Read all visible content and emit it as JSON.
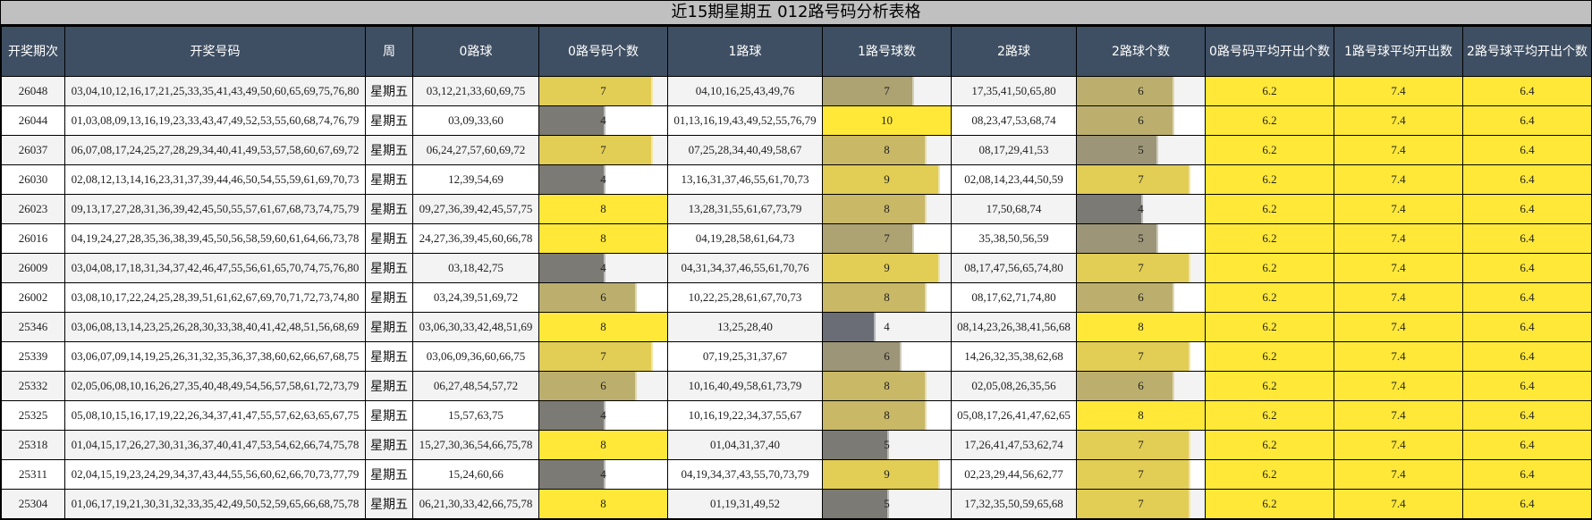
{
  "title": "近15期星期五 012路号码分析表格",
  "headers": [
    "开奖期次",
    "开奖号码",
    "周",
    "0路球",
    "0路号码个数",
    "1路球",
    "1路号球数",
    "2路球",
    "2路球个数",
    "0路号码平均开出个数",
    "1路号球平均开出数",
    "2路号球平均开出个数"
  ],
  "bar_max": {
    "zero": 8,
    "one": 10,
    "two": 8
  },
  "colors": {
    "header_bg": "#3f4f63",
    "title_bg": "#c0c0c0",
    "avg_bg": "#ffe838",
    "scale": {
      "max": "#ffe838",
      "high": "#e2cd55",
      "mid_high": "#c9b866",
      "mid": "#bcaf6e",
      "mid_low": "#aca272",
      "low": "#9c9577",
      "lower": "#7c7a74",
      "min": "#6a6d76"
    }
  },
  "rows": [
    {
      "period": "26048",
      "numbers": "03,04,10,12,16,17,21,25,33,35,41,43,49,50,60,65,69,75,76,80",
      "week": "星期五",
      "zero": "03,12,21,33,60,69,75",
      "zero_count": 7,
      "one": "04,10,16,25,43,49,76",
      "one_count": 7,
      "two": "17,35,41,50,65,80",
      "two_count": 6,
      "avg0": "6.2",
      "avg1": "7.4",
      "avg2": "6.4"
    },
    {
      "period": "26044",
      "numbers": "01,03,08,09,13,16,19,23,33,43,47,49,52,53,55,60,68,74,76,79",
      "week": "星期五",
      "zero": "03,09,33,60",
      "zero_count": 4,
      "one": "01,13,16,19,43,49,52,55,76,79",
      "one_count": 10,
      "two": "08,23,47,53,68,74",
      "two_count": 6,
      "avg0": "6.2",
      "avg1": "7.4",
      "avg2": "6.4"
    },
    {
      "period": "26037",
      "numbers": "06,07,08,17,24,25,27,28,29,34,40,41,49,53,57,58,60,67,69,72",
      "week": "星期五",
      "zero": "06,24,27,57,60,69,72",
      "zero_count": 7,
      "one": "07,25,28,34,40,49,58,67",
      "one_count": 8,
      "two": "08,17,29,41,53",
      "two_count": 5,
      "avg0": "6.2",
      "avg1": "7.4",
      "avg2": "6.4"
    },
    {
      "period": "26030",
      "numbers": "02,08,12,13,14,16,23,31,37,39,44,46,50,54,55,59,61,69,70,73",
      "week": "星期五",
      "zero": "12,39,54,69",
      "zero_count": 4,
      "one": "13,16,31,37,46,55,61,70,73",
      "one_count": 9,
      "two": "02,08,14,23,44,50,59",
      "two_count": 7,
      "avg0": "6.2",
      "avg1": "7.4",
      "avg2": "6.4"
    },
    {
      "period": "26023",
      "numbers": "09,13,17,27,28,31,36,39,42,45,50,55,57,61,67,68,73,74,75,79",
      "week": "星期五",
      "zero": "09,27,36,39,42,45,57,75",
      "zero_count": 8,
      "one": "13,28,31,55,61,67,73,79",
      "one_count": 8,
      "two": "17,50,68,74",
      "two_count": 4,
      "avg0": "6.2",
      "avg1": "7.4",
      "avg2": "6.4"
    },
    {
      "period": "26016",
      "numbers": "04,19,24,27,28,35,36,38,39,45,50,56,58,59,60,61,64,66,73,78",
      "week": "星期五",
      "zero": "24,27,36,39,45,60,66,78",
      "zero_count": 8,
      "one": "04,19,28,58,61,64,73",
      "one_count": 7,
      "two": "35,38,50,56,59",
      "two_count": 5,
      "avg0": "6.2",
      "avg1": "7.4",
      "avg2": "6.4"
    },
    {
      "period": "26009",
      "numbers": "03,04,08,17,18,31,34,37,42,46,47,55,56,61,65,70,74,75,76,80",
      "week": "星期五",
      "zero": "03,18,42,75",
      "zero_count": 4,
      "one": "04,31,34,37,46,55,61,70,76",
      "one_count": 9,
      "two": "08,17,47,56,65,74,80",
      "two_count": 7,
      "avg0": "6.2",
      "avg1": "7.4",
      "avg2": "6.4"
    },
    {
      "period": "26002",
      "numbers": "03,08,10,17,22,24,25,28,39,51,61,62,67,69,70,71,72,73,74,80",
      "week": "星期五",
      "zero": "03,24,39,51,69,72",
      "zero_count": 6,
      "one": "10,22,25,28,61,67,70,73",
      "one_count": 8,
      "two": "08,17,62,71,74,80",
      "two_count": 6,
      "avg0": "6.2",
      "avg1": "7.4",
      "avg2": "6.4"
    },
    {
      "period": "25346",
      "numbers": "03,06,08,13,14,23,25,26,28,30,33,38,40,41,42,48,51,56,68,69",
      "week": "星期五",
      "zero": "03,06,30,33,42,48,51,69",
      "zero_count": 8,
      "one": "13,25,28,40",
      "one_count": 4,
      "two": "08,14,23,26,38,41,56,68",
      "two_count": 8,
      "avg0": "6.2",
      "avg1": "7.4",
      "avg2": "6.4"
    },
    {
      "period": "25339",
      "numbers": "03,06,07,09,14,19,25,26,31,32,35,36,37,38,60,62,66,67,68,75",
      "week": "星期五",
      "zero": "03,06,09,36,60,66,75",
      "zero_count": 7,
      "one": "07,19,25,31,37,67",
      "one_count": 6,
      "two": "14,26,32,35,38,62,68",
      "two_count": 7,
      "avg0": "6.2",
      "avg1": "7.4",
      "avg2": "6.4"
    },
    {
      "period": "25332",
      "numbers": "02,05,06,08,10,16,26,27,35,40,48,49,54,56,57,58,61,72,73,79",
      "week": "星期五",
      "zero": "06,27,48,54,57,72",
      "zero_count": 6,
      "one": "10,16,40,49,58,61,73,79",
      "one_count": 8,
      "two": "02,05,08,26,35,56",
      "two_count": 6,
      "avg0": "6.2",
      "avg1": "7.4",
      "avg2": "6.4"
    },
    {
      "period": "25325",
      "numbers": "05,08,10,15,16,17,19,22,26,34,37,41,47,55,57,62,63,65,67,75",
      "week": "星期五",
      "zero": "15,57,63,75",
      "zero_count": 4,
      "one": "10,16,19,22,34,37,55,67",
      "one_count": 8,
      "two": "05,08,17,26,41,47,62,65",
      "two_count": 8,
      "avg0": "6.2",
      "avg1": "7.4",
      "avg2": "6.4"
    },
    {
      "period": "25318",
      "numbers": "01,04,15,17,26,27,30,31,36,37,40,41,47,53,54,62,66,74,75,78",
      "week": "星期五",
      "zero": "15,27,30,36,54,66,75,78",
      "zero_count": 8,
      "one": "01,04,31,37,40",
      "one_count": 5,
      "two": "17,26,41,47,53,62,74",
      "two_count": 7,
      "avg0": "6.2",
      "avg1": "7.4",
      "avg2": "6.4"
    },
    {
      "period": "25311",
      "numbers": "02,04,15,19,23,24,29,34,37,43,44,55,56,60,62,66,70,73,77,79",
      "week": "星期五",
      "zero": "15,24,60,66",
      "zero_count": 4,
      "one": "04,19,34,37,43,55,70,73,79",
      "one_count": 9,
      "two": "02,23,29,44,56,62,77",
      "two_count": 7,
      "avg0": "6.2",
      "avg1": "7.4",
      "avg2": "6.4"
    },
    {
      "period": "25304",
      "numbers": "01,06,17,19,21,30,31,32,33,35,42,49,50,52,59,65,66,68,75,78",
      "week": "星期五",
      "zero": "06,21,30,33,42,66,75,78",
      "zero_count": 8,
      "one": "01,19,31,49,52",
      "one_count": 5,
      "two": "17,32,35,50,59,65,68",
      "two_count": 7,
      "avg0": "6.2",
      "avg1": "7.4",
      "avg2": "6.4"
    }
  ]
}
